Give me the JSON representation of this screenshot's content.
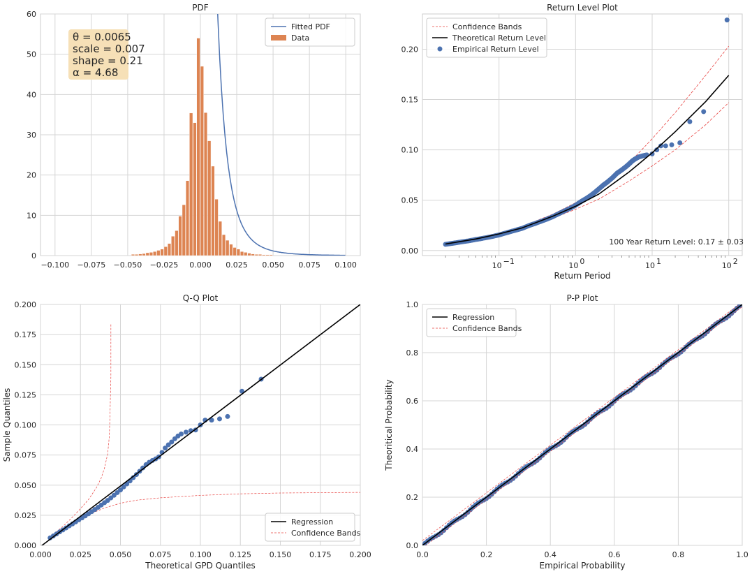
{
  "chart_data": [
    {
      "type": "bar",
      "title": "PDF",
      "xlabel": "",
      "ylabel": "",
      "xlim": [
        -0.11,
        0.11
      ],
      "ylim": [
        0,
        60
      ],
      "xticks": [
        -0.1,
        -0.075,
        -0.05,
        -0.025,
        0.0,
        0.025,
        0.05,
        0.075,
        0.1
      ],
      "xtick_labels": [
        "−0.100",
        "−0.075",
        "−0.050",
        "−0.025",
        "0.000",
        "0.025",
        "0.050",
        "0.075",
        "0.100"
      ],
      "yticks": [
        0,
        10,
        20,
        30,
        40,
        50,
        60
      ],
      "ytick_labels": [
        "0",
        "10",
        "20",
        "30",
        "40",
        "50",
        "60"
      ],
      "grid": true,
      "legend": {
        "placement": "upper-right",
        "entries": [
          {
            "label": "Fitted PDF",
            "kind": "line",
            "color": "#4c72b0"
          },
          {
            "label": "Data",
            "kind": "patch",
            "color": "#dd8452"
          }
        ]
      },
      "annotation": {
        "lines": [
          "θ = 0.0065",
          "scale = 0.007",
          "shape = 0.21",
          "α = 4.68"
        ],
        "placement": "upper-left",
        "box_color": "#f5deb3"
      },
      "histogram": {
        "bin_width": 0.0025,
        "color": "#dd8452",
        "bins": [
          {
            "x": -0.0475,
            "h": 0.3
          },
          {
            "x": -0.045,
            "h": 0.3
          },
          {
            "x": -0.0425,
            "h": 0.4
          },
          {
            "x": -0.04,
            "h": 0.5
          },
          {
            "x": -0.0375,
            "h": 0.7
          },
          {
            "x": -0.035,
            "h": 0.8
          },
          {
            "x": -0.0325,
            "h": 1.0
          },
          {
            "x": -0.03,
            "h": 1.3
          },
          {
            "x": -0.0275,
            "h": 1.6
          },
          {
            "x": -0.025,
            "h": 2.2
          },
          {
            "x": -0.0225,
            "h": 3.0
          },
          {
            "x": -0.02,
            "h": 4.8
          },
          {
            "x": -0.0175,
            "h": 6.2
          },
          {
            "x": -0.015,
            "h": 9.8
          },
          {
            "x": -0.0125,
            "h": 12.6
          },
          {
            "x": -0.01,
            "h": 18.6
          },
          {
            "x": -0.0075,
            "h": 35.4
          },
          {
            "x": -0.005,
            "h": 33.0
          },
          {
            "x": -0.0025,
            "h": 54.0
          },
          {
            "x": 0.0,
            "h": 47.0
          },
          {
            "x": 0.0025,
            "h": 35.5
          },
          {
            "x": 0.005,
            "h": 28.5
          },
          {
            "x": 0.0075,
            "h": 22.2
          },
          {
            "x": 0.01,
            "h": 14.0
          },
          {
            "x": 0.0125,
            "h": 8.5
          },
          {
            "x": 0.015,
            "h": 5.2
          },
          {
            "x": 0.0175,
            "h": 3.8
          },
          {
            "x": 0.02,
            "h": 2.8
          },
          {
            "x": 0.0225,
            "h": 2.0
          },
          {
            "x": 0.025,
            "h": 1.6
          },
          {
            "x": 0.0275,
            "h": 1.0
          },
          {
            "x": 0.03,
            "h": 0.8
          },
          {
            "x": 0.0325,
            "h": 0.6
          },
          {
            "x": 0.035,
            "h": 0.4
          },
          {
            "x": 0.0375,
            "h": 0.3
          },
          {
            "x": 0.04,
            "h": 0.3
          },
          {
            "x": 0.0425,
            "h": 0.2
          },
          {
            "x": 0.045,
            "h": 0.2
          },
          {
            "x": 0.0475,
            "h": 0.2
          }
        ]
      },
      "fitted_pdf": {
        "color": "#4c72b0",
        "theta": 0.0065,
        "scale": 0.007,
        "shape": 0.21,
        "x_end": 0.1
      }
    },
    {
      "type": "scatter",
      "title": "Return Level Plot",
      "xlabel": "Return Period",
      "ylabel": "",
      "xscale": "log",
      "xlim": [
        0.01,
        150
      ],
      "ylim": [
        -0.005,
        0.235
      ],
      "xticks": [
        0.1,
        1,
        10,
        100
      ],
      "xtick_labels": [
        [
          "10",
          "−1"
        ],
        [
          "10",
          "0"
        ],
        [
          "10",
          "1"
        ],
        [
          "10",
          "2"
        ]
      ],
      "yticks": [
        0.0,
        0.05,
        0.1,
        0.15,
        0.2
      ],
      "ytick_labels": [
        "0.00",
        "0.05",
        "0.10",
        "0.15",
        "0.20"
      ],
      "grid": true,
      "legend": {
        "placement": "upper-left",
        "entries": [
          {
            "label": "Confidence Bands",
            "kind": "dashed",
            "color": "#e8413f"
          },
          {
            "label": "Theoretical Return Level",
            "kind": "line",
            "color": "#000000"
          },
          {
            "label": "Empirical Return Level",
            "kind": "marker",
            "color": "#4c72b0"
          }
        ]
      },
      "annotation": "100 Year Return Level: 0.17 ± 0.03",
      "theoretical": [
        [
          0.02,
          0.0065
        ],
        [
          0.05,
          0.0115
        ],
        [
          0.1,
          0.0165
        ],
        [
          0.2,
          0.0225
        ],
        [
          0.5,
          0.034
        ],
        [
          1,
          0.044
        ],
        [
          2,
          0.056
        ],
        [
          5,
          0.078
        ],
        [
          10,
          0.097
        ],
        [
          20,
          0.118
        ],
        [
          50,
          0.148
        ],
        [
          100,
          0.174
        ]
      ],
      "band_upper": [
        [
          0.02,
          0.0075
        ],
        [
          0.05,
          0.0125
        ],
        [
          0.1,
          0.0175
        ],
        [
          0.2,
          0.024
        ],
        [
          0.5,
          0.036
        ],
        [
          1,
          0.0475
        ],
        [
          2,
          0.0615
        ],
        [
          5,
          0.087
        ],
        [
          10,
          0.111
        ],
        [
          20,
          0.137
        ],
        [
          50,
          0.174
        ],
        [
          100,
          0.203
        ]
      ],
      "band_lower": [
        [
          0.02,
          0.0055
        ],
        [
          0.05,
          0.0105
        ],
        [
          0.1,
          0.0155
        ],
        [
          0.2,
          0.021
        ],
        [
          0.5,
          0.032
        ],
        [
          1,
          0.041
        ],
        [
          2,
          0.051
        ],
        [
          5,
          0.069
        ],
        [
          10,
          0.084
        ],
        [
          20,
          0.1
        ],
        [
          50,
          0.125
        ],
        [
          100,
          0.147
        ]
      ],
      "empirical": [
        [
          0.02,
          0.0062
        ],
        [
          0.025,
          0.0072
        ],
        [
          0.03,
          0.0082
        ],
        [
          0.04,
          0.0096
        ],
        [
          0.05,
          0.011
        ],
        [
          0.06,
          0.012
        ],
        [
          0.08,
          0.0138
        ],
        [
          0.1,
          0.0155
        ],
        [
          0.13,
          0.018
        ],
        [
          0.17,
          0.0205
        ],
        [
          0.2,
          0.022
        ],
        [
          0.25,
          0.025
        ],
        [
          0.3,
          0.027
        ],
        [
          0.4,
          0.0305
        ],
        [
          0.5,
          0.0335
        ],
        [
          0.6,
          0.0365
        ],
        [
          0.7,
          0.039
        ],
        [
          0.85,
          0.042
        ],
        [
          1.0,
          0.045
        ],
        [
          1.2,
          0.049
        ],
        [
          1.4,
          0.052
        ],
        [
          1.6,
          0.055
        ],
        [
          1.8,
          0.058
        ],
        [
          2.0,
          0.061
        ],
        [
          2.3,
          0.065
        ],
        [
          2.6,
          0.068
        ],
        [
          3.0,
          0.072
        ],
        [
          3.5,
          0.077
        ],
        [
          4.0,
          0.08
        ],
        [
          4.5,
          0.083
        ],
        [
          5.0,
          0.086
        ],
        [
          5.5,
          0.089
        ],
        [
          6.0,
          0.091
        ],
        [
          6.7,
          0.093
        ],
        [
          7.5,
          0.094
        ],
        [
          8.5,
          0.095
        ],
        [
          10.0,
          0.096
        ],
        [
          11.5,
          0.1
        ],
        [
          13.0,
          0.104
        ],
        [
          15.0,
          0.104
        ],
        [
          18.0,
          0.105
        ],
        [
          23.0,
          0.107
        ],
        [
          31.0,
          0.128
        ],
        [
          47.0,
          0.138
        ],
        [
          95.0,
          0.229
        ]
      ]
    },
    {
      "type": "scatter",
      "title": "Q-Q Plot",
      "xlabel": "Theoretical GPD Quantiles",
      "ylabel": "Sample Quantiles",
      "xlim": [
        0.0,
        0.2
      ],
      "ylim": [
        0.0,
        0.2
      ],
      "xticks": [
        0.0,
        0.025,
        0.05,
        0.075,
        0.1,
        0.125,
        0.15,
        0.175,
        0.2
      ],
      "xtick_labels": [
        "0.000",
        "0.025",
        "0.050",
        "0.075",
        "0.100",
        "0.125",
        "0.150",
        "0.175",
        "0.200"
      ],
      "yticks": [
        0.0,
        0.025,
        0.05,
        0.075,
        0.1,
        0.125,
        0.15,
        0.175,
        0.2
      ],
      "ytick_labels": [
        "0.000",
        "0.025",
        "0.050",
        "0.075",
        "0.100",
        "0.125",
        "0.150",
        "0.175",
        "0.200"
      ],
      "grid": true,
      "legend": {
        "placement": "lower-right",
        "entries": [
          {
            "label": "Regression",
            "kind": "line",
            "color": "#000000"
          },
          {
            "label": "Confidence Bands",
            "kind": "dashed",
            "color": "#e8413f"
          }
        ]
      },
      "regression": [
        [
          0.0,
          -0.001
        ],
        [
          0.2,
          0.2
        ]
      ],
      "band_upper": [
        [
          0.0065,
          0.0072
        ],
        [
          0.015,
          0.017
        ],
        [
          0.02,
          0.0235
        ],
        [
          0.025,
          0.0305
        ],
        [
          0.03,
          0.038
        ],
        [
          0.035,
          0.048
        ],
        [
          0.038,
          0.056
        ],
        [
          0.04,
          0.064
        ],
        [
          0.042,
          0.076
        ],
        [
          0.043,
          0.09
        ],
        [
          0.0435,
          0.11
        ],
        [
          0.044,
          0.14
        ],
        [
          0.044,
          0.184
        ]
      ],
      "band_lower": [
        [
          0.0065,
          0.0058
        ],
        [
          0.015,
          0.0135
        ],
        [
          0.02,
          0.018
        ],
        [
          0.025,
          0.0215
        ],
        [
          0.03,
          0.0255
        ],
        [
          0.04,
          0.031
        ],
        [
          0.05,
          0.035
        ],
        [
          0.06,
          0.0375
        ],
        [
          0.075,
          0.0395
        ],
        [
          0.1,
          0.0415
        ],
        [
          0.125,
          0.0428
        ],
        [
          0.15,
          0.0435
        ],
        [
          0.2,
          0.044
        ]
      ],
      "points": [
        [
          0.006,
          0.0062
        ],
        [
          0.008,
          0.0078
        ],
        [
          0.01,
          0.0095
        ],
        [
          0.012,
          0.0112
        ],
        [
          0.014,
          0.0128
        ],
        [
          0.016,
          0.0145
        ],
        [
          0.018,
          0.0162
        ],
        [
          0.02,
          0.0178
        ],
        [
          0.022,
          0.0195
        ],
        [
          0.024,
          0.0212
        ],
        [
          0.026,
          0.0228
        ],
        [
          0.028,
          0.0245
        ],
        [
          0.03,
          0.0262
        ],
        [
          0.032,
          0.028
        ],
        [
          0.034,
          0.0298
        ],
        [
          0.036,
          0.0316
        ],
        [
          0.038,
          0.0335
        ],
        [
          0.04,
          0.0354
        ],
        [
          0.042,
          0.0373
        ],
        [
          0.044,
          0.0394
        ],
        [
          0.046,
          0.0416
        ],
        [
          0.048,
          0.0438
        ],
        [
          0.05,
          0.046
        ],
        [
          0.052,
          0.0485
        ],
        [
          0.054,
          0.051
        ],
        [
          0.056,
          0.0535
        ],
        [
          0.058,
          0.0562
        ],
        [
          0.06,
          0.0588
        ],
        [
          0.062,
          0.0615
        ],
        [
          0.064,
          0.0643
        ],
        [
          0.066,
          0.067
        ],
        [
          0.068,
          0.069
        ],
        [
          0.07,
          0.0705
        ],
        [
          0.072,
          0.0718
        ],
        [
          0.074,
          0.0735
        ],
        [
          0.076,
          0.0772
        ],
        [
          0.078,
          0.0808
        ],
        [
          0.08,
          0.0835
        ],
        [
          0.082,
          0.0858
        ],
        [
          0.084,
          0.0885
        ],
        [
          0.086,
          0.0908
        ],
        [
          0.088,
          0.0925
        ],
        [
          0.091,
          0.094
        ],
        [
          0.094,
          0.0952
        ],
        [
          0.097,
          0.0958
        ],
        [
          0.1,
          0.1
        ],
        [
          0.103,
          0.104
        ],
        [
          0.107,
          0.104
        ],
        [
          0.112,
          0.105
        ],
        [
          0.117,
          0.107
        ],
        [
          0.126,
          0.128
        ],
        [
          0.138,
          0.138
        ]
      ]
    },
    {
      "type": "scatter",
      "title": "P-P Plot",
      "xlabel": "Empirical Probability",
      "ylabel": "Theoritical Probability",
      "xlim": [
        0.0,
        1.0
      ],
      "ylim": [
        0.0,
        1.0
      ],
      "xticks": [
        0.0,
        0.2,
        0.4,
        0.6,
        0.8,
        1.0
      ],
      "xtick_labels": [
        "0.0",
        "0.2",
        "0.4",
        "0.6",
        "0.8",
        "1.0"
      ],
      "yticks": [
        0.0,
        0.2,
        0.4,
        0.6,
        0.8,
        1.0
      ],
      "ytick_labels": [
        "0.0",
        "0.2",
        "0.4",
        "0.6",
        "0.8",
        "1.0"
      ],
      "grid": true,
      "legend": {
        "placement": "upper-left",
        "entries": [
          {
            "label": "Regression",
            "kind": "line",
            "color": "#000000"
          },
          {
            "label": "Confidence Bands",
            "kind": "dashed",
            "color": "#e8413f"
          }
        ]
      },
      "regression": [
        [
          0.0,
          0.0
        ],
        [
          1.0,
          1.0
        ]
      ],
      "band_upper": [
        [
          0.0,
          0.02
        ],
        [
          1.0,
          1.01
        ]
      ],
      "band_lower": [
        [
          0.0,
          -0.01
        ],
        [
          1.0,
          0.99
        ]
      ],
      "points": {
        "from": 0.0,
        "to": 1.0,
        "count": 120,
        "wiggle": 0.008
      }
    }
  ]
}
